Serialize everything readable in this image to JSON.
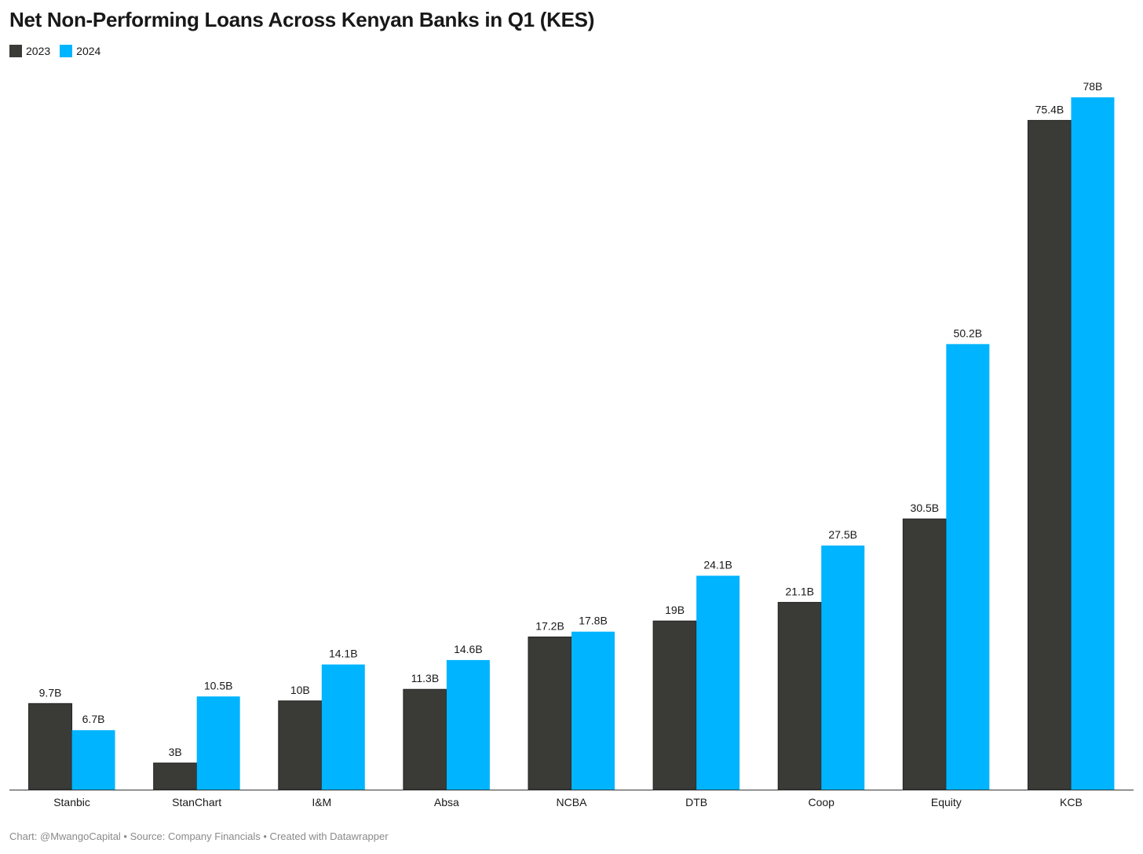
{
  "chart_data": {
    "type": "bar",
    "title": "Net Non-Performing Loans Across Kenyan Banks in Q1 (KES)",
    "xlabel": "",
    "ylabel": "",
    "ylim": [
      0,
      78
    ],
    "grid": false,
    "legend_position": "top-left",
    "categories": [
      "Stanbic",
      "StanChart",
      "I&M",
      "Absa",
      "NCBA",
      "DTB",
      "Coop",
      "Equity",
      "KCB"
    ],
    "series": [
      {
        "name": "2023",
        "color": "#3a3a36",
        "values": [
          9.7,
          3,
          10,
          11.3,
          17.2,
          19,
          21.1,
          30.5,
          75.4
        ],
        "labels": [
          "9.7B",
          "3B",
          "10B",
          "11.3B",
          "17.2B",
          "19B",
          "21.1B",
          "30.5B",
          "75.4B"
        ]
      },
      {
        "name": "2024",
        "color": "#00b4ff",
        "values": [
          6.7,
          10.5,
          14.1,
          14.6,
          17.8,
          24.1,
          27.5,
          50.2,
          78
        ],
        "labels": [
          "6.7B",
          "10.5B",
          "14.1B",
          "14.6B",
          "17.8B",
          "24.1B",
          "27.5B",
          "50.2B",
          "78B"
        ]
      }
    ]
  },
  "footer": "Chart: @MwangoCapital • Source: Company Financials • Created with Datawrapper"
}
